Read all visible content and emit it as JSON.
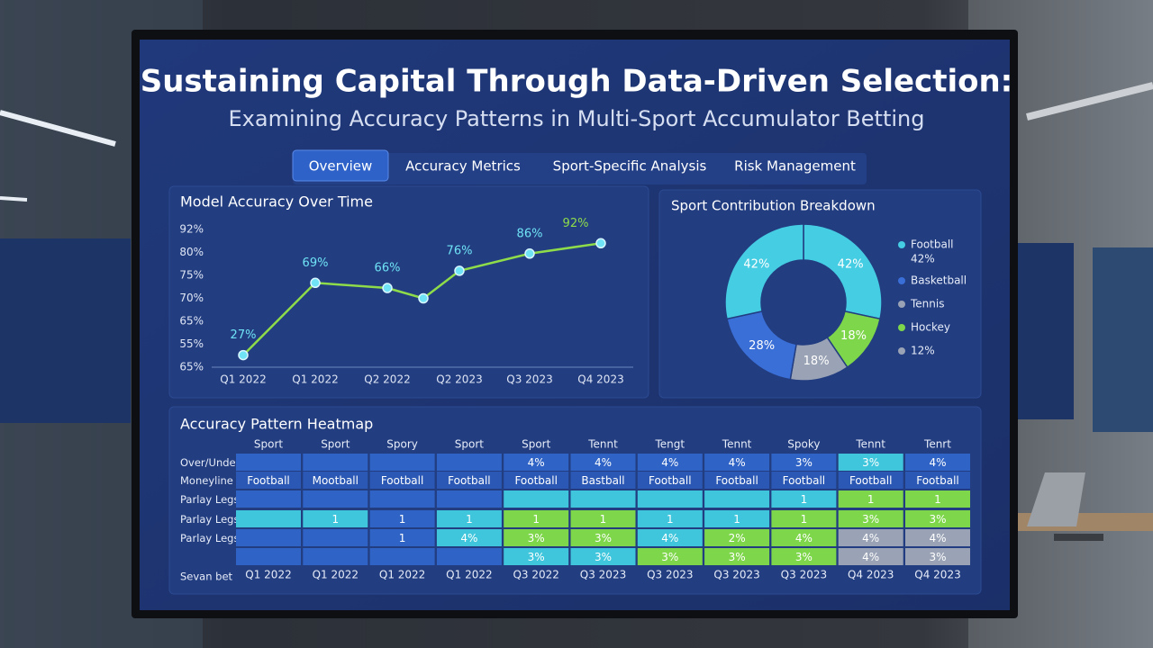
{
  "header": {
    "title": "Sustaining Capital Through Data-Driven Selection:",
    "subtitle": "Examining Accuracy Patterns in Multi-Sport Accumulator Betting"
  },
  "tabs": [
    {
      "label": "Overview",
      "active": true
    },
    {
      "label": "Accuracy Metrics"
    },
    {
      "label": "Sport-Specific Analysis"
    },
    {
      "label": "Risk Management"
    }
  ],
  "chart_data": [
    {
      "type": "line",
      "title": "Model Accuracy Over Time",
      "y_labels": [
        "92%",
        "80%",
        "75%",
        "70%",
        "65%",
        "55%",
        "65%"
      ],
      "categories": [
        "Q1 2022",
        "Q1 2022",
        "Q2 2022",
        null,
        "Q2 2023",
        "Q3 2023",
        "Q4 2023"
      ],
      "values": [
        27,
        69,
        66,
        60,
        76,
        86,
        92
      ],
      "value_labels": [
        "27%",
        "69%",
        "66%",
        null,
        "76%",
        "86%",
        "92%"
      ],
      "ylim": [
        20,
        100
      ],
      "color": "#8fdc4a",
      "marker_color": "#6fe3f5"
    },
    {
      "type": "pie",
      "title": "Sport Contribution Breakdown",
      "donut": true,
      "values": [
        42,
        18,
        18,
        28,
        42
      ],
      "value_labels": [
        "42%",
        "18%",
        "18%",
        "28%",
        "42%"
      ],
      "colors": [
        "#45cde3",
        "#7ed64a",
        "#9aa3b5",
        "#3a6fd8",
        "#45cde3"
      ],
      "legend": [
        {
          "label": "Football",
          "detail": "42%",
          "color": "#45cde3"
        },
        {
          "label": "Basketball",
          "color": "#3a6fd8"
        },
        {
          "label": "Tennis",
          "color": "#9aa3b5"
        },
        {
          "label": "Hockey",
          "color": "#7ed64a"
        },
        {
          "label": "12%",
          "color": "#9aa3b5"
        }
      ]
    }
  ],
  "heatmap": {
    "title": "Accuracy Pattern Heatmap",
    "columns": [
      "Sport",
      "Sport",
      "Spory",
      "Sport",
      "Sport",
      "Tennt",
      "Tengt",
      "Tennt",
      "Spoky",
      "Tennt",
      "Tenrt"
    ],
    "rows": [
      {
        "label": "Over/Under",
        "cells": [
          [
            null,
            "#2f63c6"
          ],
          [
            null,
            "#2f63c6"
          ],
          [
            null,
            "#2f63c6"
          ],
          [
            null,
            "#2f63c6"
          ],
          [
            "4%",
            "#2f63c6"
          ],
          [
            "4%",
            "#2f63c6"
          ],
          [
            "4%",
            "#2f63c6"
          ],
          [
            "4%",
            "#2f63c6"
          ],
          [
            "3%",
            "#2f63c6"
          ],
          [
            "3%",
            "#3fc6dc"
          ],
          [
            "4%",
            "#2f63c6"
          ]
        ]
      },
      {
        "label": "Moneyline",
        "cells": [
          [
            "Football",
            "#2a58b4"
          ],
          [
            "Mootball",
            "#2a58b4"
          ],
          [
            "Football",
            "#2a58b4"
          ],
          [
            "Football",
            "#2a58b4"
          ],
          [
            "Football",
            "#2a58b4"
          ],
          [
            "Bastball",
            "#2a58b4"
          ],
          [
            "Football",
            "#2a58b4"
          ],
          [
            "Football",
            "#2a58b4"
          ],
          [
            "Football",
            "#2a58b4"
          ],
          [
            "Football",
            "#2a58b4"
          ],
          [
            "Football",
            "#2a58b4"
          ]
        ]
      },
      {
        "label": "Parlay Legs",
        "cells": [
          [
            null,
            "#2f63c6"
          ],
          [
            null,
            "#2f63c6"
          ],
          [
            null,
            "#2f63c6"
          ],
          [
            null,
            "#2f63c6"
          ],
          [
            null,
            "#3fc6dc"
          ],
          [
            null,
            "#3fc6dc"
          ],
          [
            null,
            "#3fc6dc"
          ],
          [
            null,
            "#3fc6dc"
          ],
          [
            "1",
            "#3fc6dc"
          ],
          [
            "1",
            "#7ed64a"
          ],
          [
            "1",
            "#7ed64a"
          ]
        ]
      },
      {
        "label": "Parlay Legs",
        "cells": [
          [
            null,
            "#3fc6dc"
          ],
          [
            "1",
            "#3fc6dc"
          ],
          [
            "1",
            "#2f63c6"
          ],
          [
            "1",
            "#3fc6dc"
          ],
          [
            "1",
            "#7ed64a"
          ],
          [
            "1",
            "#7ed64a"
          ],
          [
            "1",
            "#3fc6dc"
          ],
          [
            "1",
            "#3fc6dc"
          ],
          [
            "1",
            "#7ed64a"
          ],
          [
            "3%",
            "#7ed64a"
          ],
          [
            "3%",
            "#7ed64a"
          ]
        ]
      },
      {
        "label": "Parlay Legs",
        "cells": [
          [
            null,
            "#2f63c6"
          ],
          [
            null,
            "#2f63c6"
          ],
          [
            "1",
            "#2f63c6"
          ],
          [
            "4%",
            "#3fc6dc"
          ],
          [
            "3%",
            "#7ed64a"
          ],
          [
            "3%",
            "#7ed64a"
          ],
          [
            "4%",
            "#3fc6dc"
          ],
          [
            "2%",
            "#7ed64a"
          ],
          [
            "4%",
            "#7ed64a"
          ],
          [
            "4%",
            "#9aa3b5"
          ],
          [
            "4%",
            "#9aa3b5"
          ]
        ]
      },
      {
        "cells": [
          [
            null,
            "#2f63c6"
          ],
          [
            null,
            "#2f63c6"
          ],
          [
            null,
            "#2f63c6"
          ],
          [
            null,
            "#2f63c6"
          ],
          [
            "3%",
            "#3fc6dc"
          ],
          [
            "3%",
            "#3fc6dc"
          ],
          [
            "3%",
            "#7ed64a"
          ],
          [
            "3%",
            "#7ed64a"
          ],
          [
            "3%",
            "#7ed64a"
          ],
          [
            "4%",
            "#9aa3b5"
          ],
          [
            "3%",
            "#9aa3b5"
          ]
        ]
      }
    ],
    "footer_label": "Sevan bet",
    "periods": [
      "Q1 2022",
      "Q1 2022",
      "Q1 2022",
      "Q1 2022",
      "Q3 2022",
      "Q3 2023",
      "Q3 2023",
      "Q3 2023",
      "Q3 2023",
      "Q4 2023",
      "Q4 2023"
    ]
  }
}
